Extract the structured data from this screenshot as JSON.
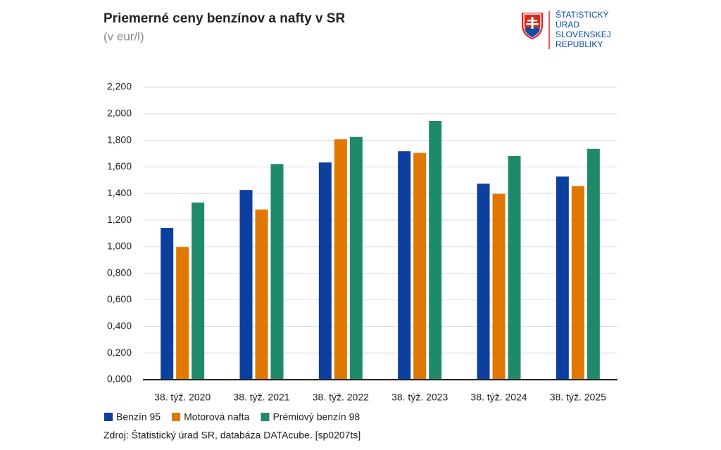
{
  "chart_data": {
    "type": "bar",
    "title": "Priemerné ceny benzínov a nafty v SR",
    "subtitle": "(v eur/l)",
    "logo": [
      "ŠTATISTICKÝ",
      "ÚRAD",
      "SLOVENSKEJ",
      "REPUBLIKY"
    ],
    "source": "Zdroj: Štatistický úrad SR, databáza DATAcube. [sp0207ts]",
    "categories": [
      "38. týž. 2020",
      "38. týž. 2021",
      "38. týž. 2022",
      "38. týž. 2023",
      "38. týž. 2024",
      "38. týž. 2025"
    ],
    "series": [
      {
        "name": "Benzín 95",
        "color": "#0d3f9e",
        "values": [
          1.142,
          1.427,
          1.634,
          1.718,
          1.474,
          1.528
        ]
      },
      {
        "name": "Motorová nafta",
        "color": "#e07800",
        "values": [
          0.998,
          1.28,
          1.808,
          1.706,
          1.398,
          1.456
        ]
      },
      {
        "name": "Prémiový benzín 98",
        "color": "#1f8a6b",
        "values": [
          1.332,
          1.622,
          1.826,
          1.946,
          1.682,
          1.736
        ]
      }
    ],
    "ylim": [
      0,
      2.2
    ],
    "yticks": [
      {
        "value": 0,
        "label": "0,000"
      },
      {
        "value": 0.2,
        "label": "0,200"
      },
      {
        "value": 0.4,
        "label": "0,400"
      },
      {
        "value": 0.6,
        "label": "0,600"
      },
      {
        "value": 0.8,
        "label": "0,800"
      },
      {
        "value": 1.0,
        "label": "1,000"
      },
      {
        "value": 1.2,
        "label": "1,200"
      },
      {
        "value": 1.4,
        "label": "1,400"
      },
      {
        "value": 1.6,
        "label": "1,600"
      },
      {
        "value": 1.8,
        "label": "1,800"
      },
      {
        "value": 2.0,
        "label": "2,000"
      },
      {
        "value": 2.2,
        "label": "2,200"
      }
    ],
    "grid": true,
    "legend": "bottom"
  }
}
